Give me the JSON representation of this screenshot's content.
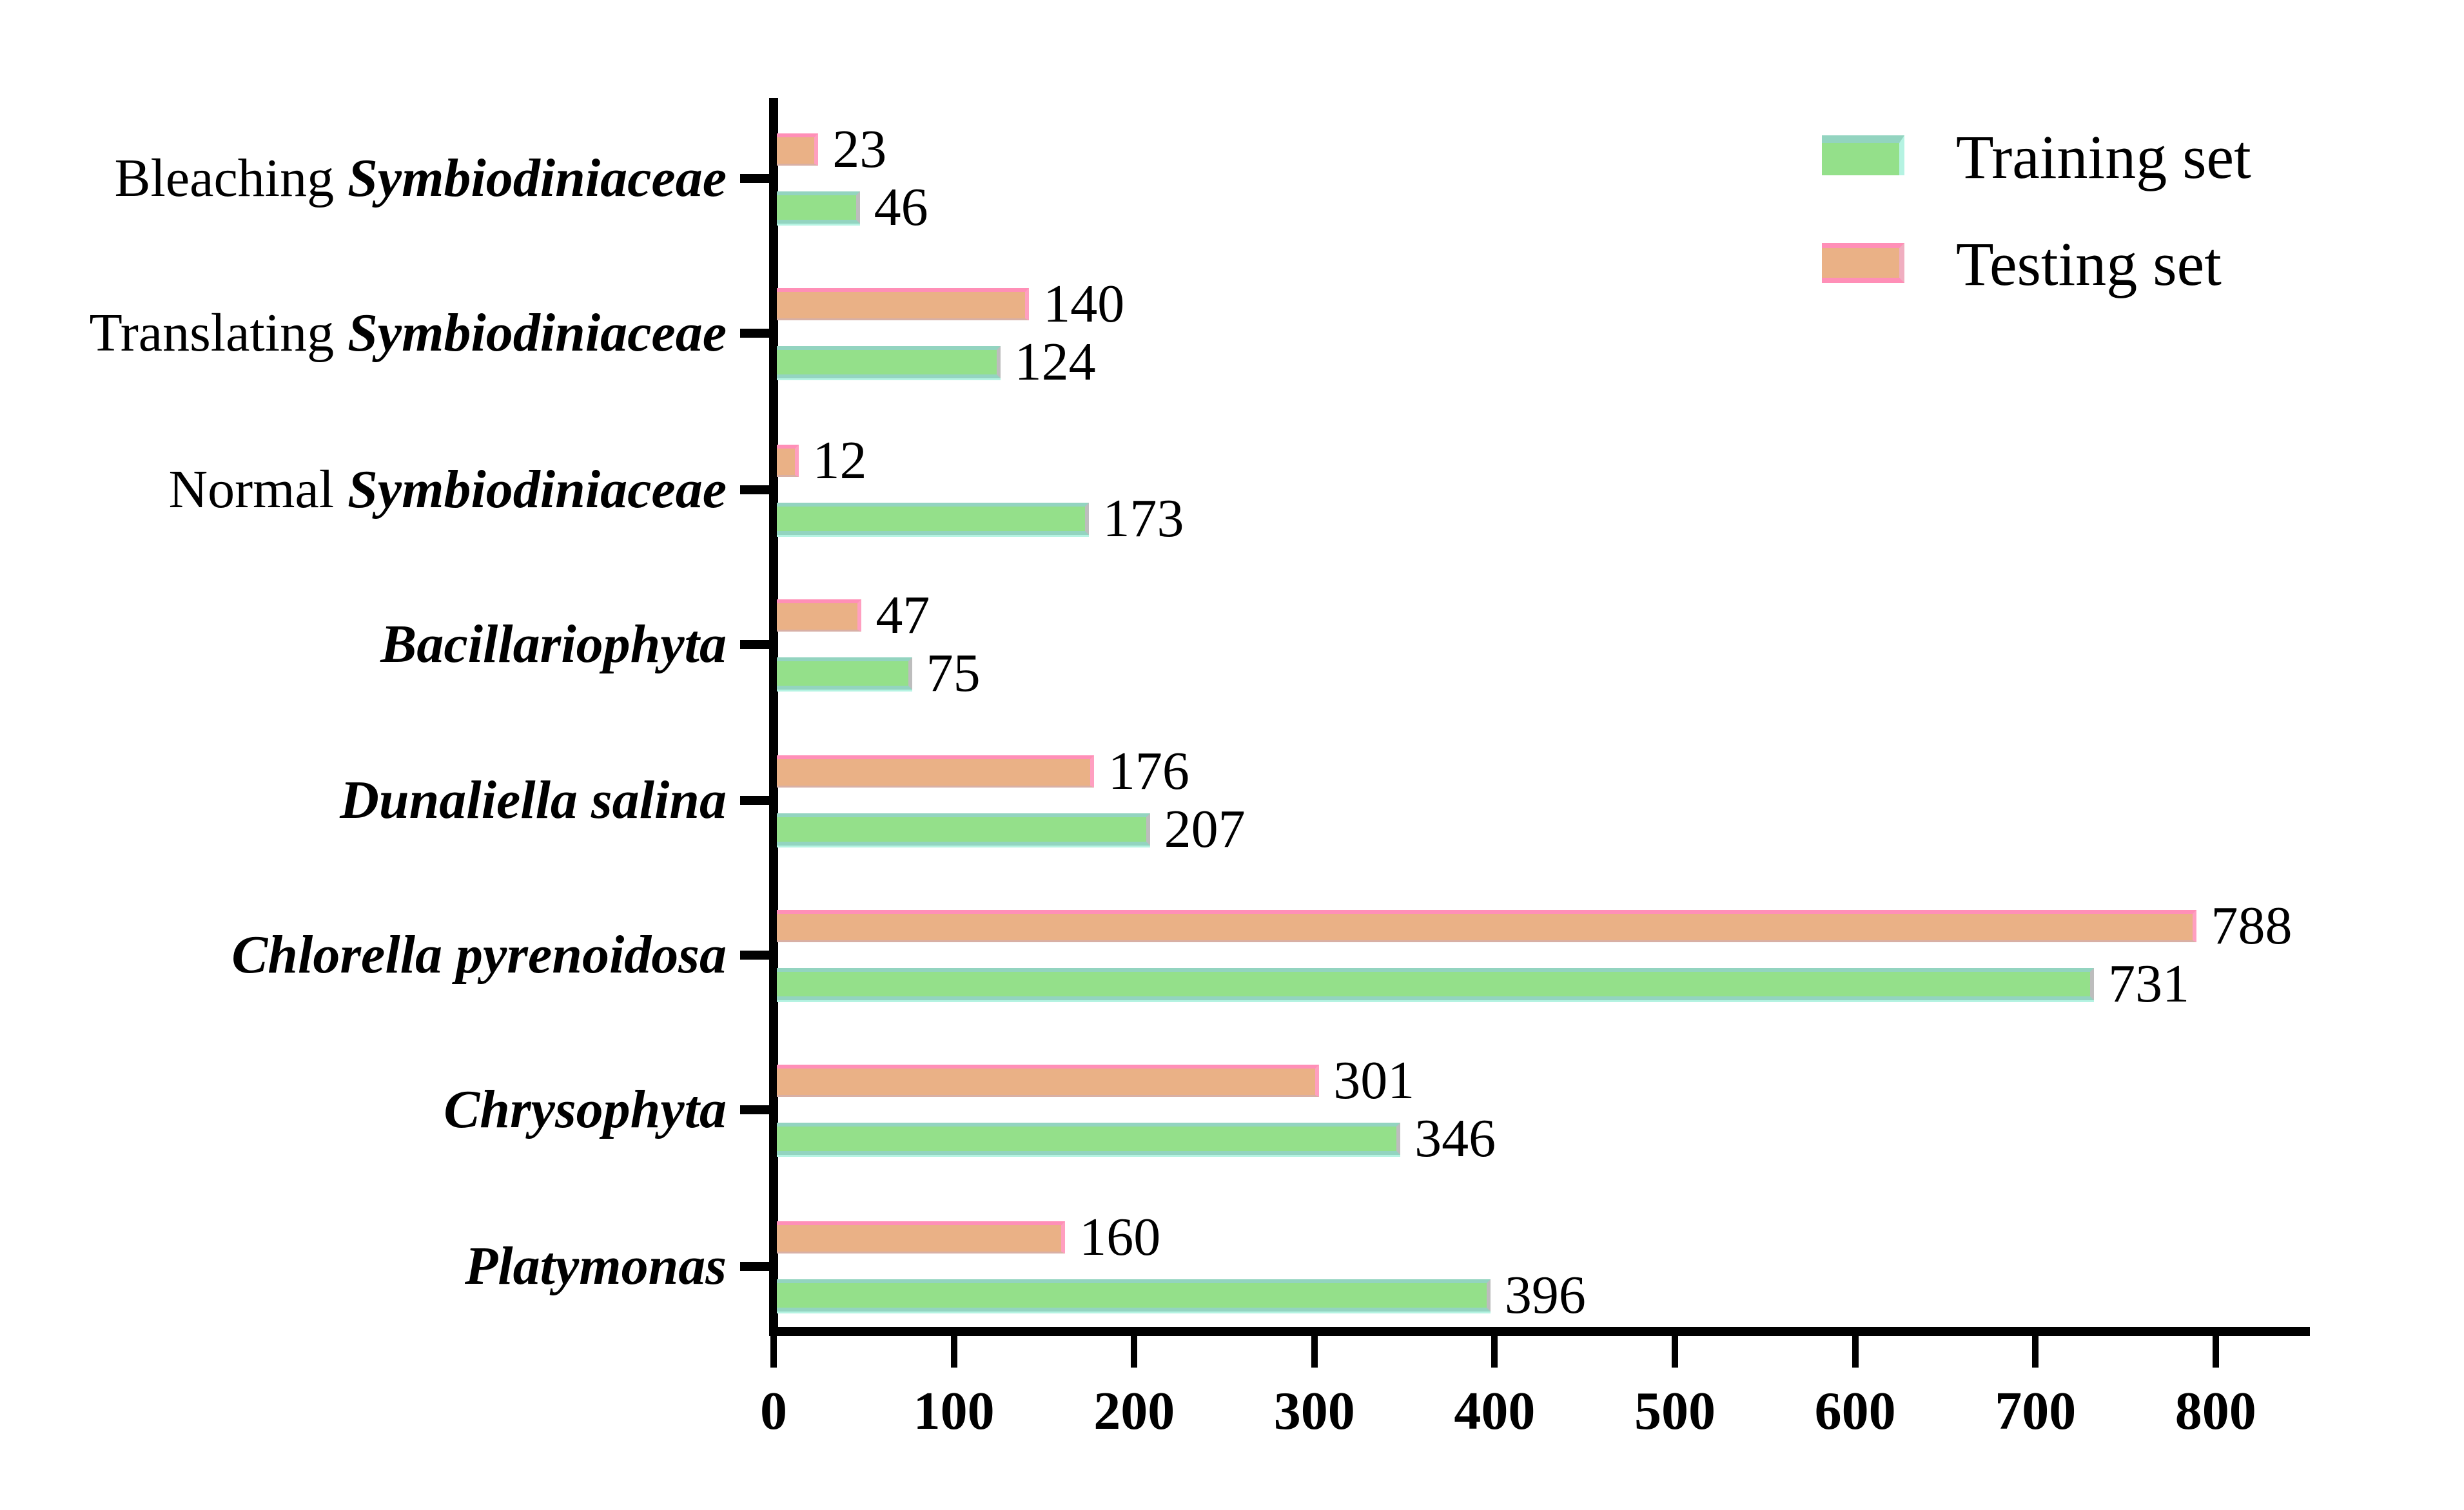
{
  "chart_data": {
    "type": "bar",
    "orientation": "horizontal",
    "title": "",
    "xlabel": "",
    "ylabel": "",
    "xlim": [
      0,
      850
    ],
    "xticks": [
      0,
      100,
      200,
      300,
      400,
      500,
      600,
      700,
      800
    ],
    "grid": false,
    "legend_position": "top-right",
    "categories": [
      {
        "prefix": "Bleaching ",
        "italic": "Symbiodiniaceae"
      },
      {
        "prefix": "Translating ",
        "italic": "Symbiodiniaceae"
      },
      {
        "prefix": "Normal ",
        "italic": "Symbiodiniaceae"
      },
      {
        "prefix": "",
        "italic": "Bacillariophyta"
      },
      {
        "prefix": "",
        "italic": "Dunaliella salina"
      },
      {
        "prefix": "",
        "italic": "Chlorella pyrenoidosa"
      },
      {
        "prefix": "",
        "italic": "Chrysophyta"
      },
      {
        "prefix": "",
        "italic": "Platymonas"
      }
    ],
    "series": [
      {
        "name": "Training set",
        "color": "#94e08a",
        "edge_color": "#93d4c0",
        "values": [
          46,
          124,
          173,
          75,
          207,
          731,
          346,
          396
        ]
      },
      {
        "name": "Testing set",
        "color": "#eab186",
        "edge_color": "#ff8fb7",
        "values": [
          23,
          140,
          12,
          47,
          176,
          788,
          301,
          160
        ]
      }
    ]
  },
  "legend": {
    "training_label": "Training set",
    "testing_label": "Testing set"
  }
}
